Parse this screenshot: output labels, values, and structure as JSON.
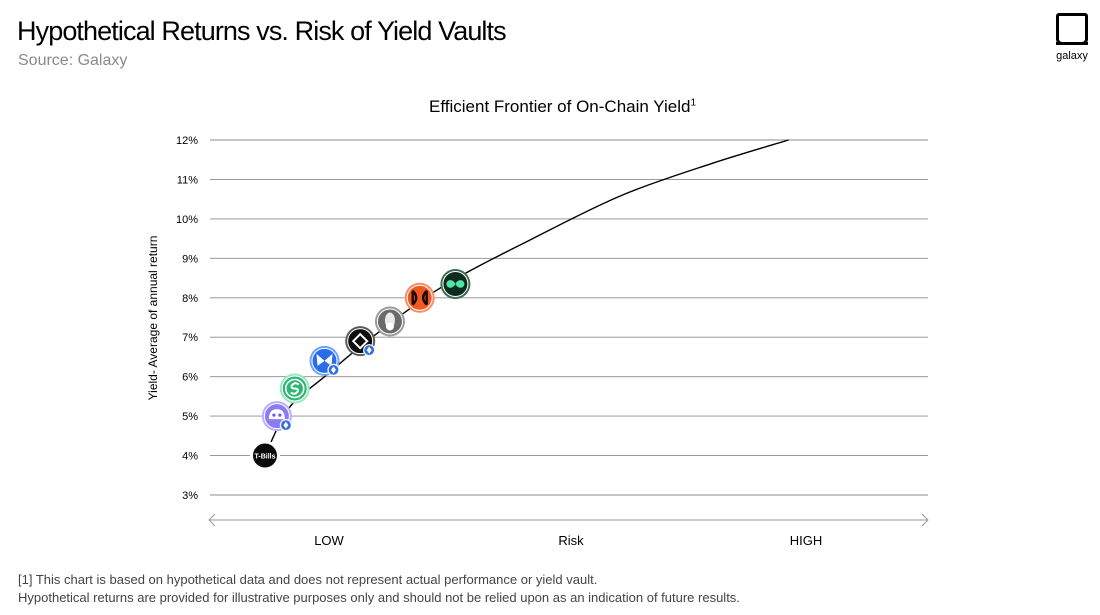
{
  "header": {
    "title": "Hypothetical Returns vs. Risk of Yield Vaults",
    "source": "Source: Galaxy",
    "logo_text": "galaxy"
  },
  "chart_data": {
    "type": "line",
    "title": "Efficient Frontier of On-Chain Yield",
    "title_footnote_marker": "1",
    "ylabel": "Yield- Average of annual return",
    "xlabel": "Risk",
    "ylim": [
      3,
      12
    ],
    "y_ticks": [
      "3%",
      "4%",
      "5%",
      "6%",
      "7%",
      "8%",
      "9%",
      "10%",
      "11%",
      "12%"
    ],
    "x_scale_labels": {
      "low": "LOW",
      "mid": "Risk",
      "high": "HIGH"
    },
    "xlim": [
      0,
      1
    ],
    "grid": true,
    "frontier_curve": [
      {
        "x": 0.0,
        "y": 4.0
      },
      {
        "x": 0.04,
        "y": 5.2
      },
      {
        "x": 0.1,
        "y": 6.0
      },
      {
        "x": 0.18,
        "y": 7.0
      },
      {
        "x": 0.3,
        "y": 8.3
      },
      {
        "x": 0.45,
        "y": 9.5
      },
      {
        "x": 0.6,
        "y": 10.6
      },
      {
        "x": 0.75,
        "y": 11.4
      },
      {
        "x": 0.88,
        "y": 12.0
      }
    ],
    "points": [
      {
        "x": 0.0,
        "y": 4.0,
        "icon": "t-bills-icon",
        "label": "T-Bills",
        "color": "#0b0b0b",
        "ring": "#ffffff",
        "badge": false
      },
      {
        "x": 0.02,
        "y": 5.0,
        "icon": "face-icon",
        "color": "#8b7cf6",
        "ring": "#b8aefc",
        "badge": true
      },
      {
        "x": 0.05,
        "y": 5.7,
        "icon": "s-coin-icon",
        "color": "#2fb673",
        "ring": "#9be7bf",
        "badge": false
      },
      {
        "x": 0.1,
        "y": 6.4,
        "icon": "butterfly-icon",
        "color": "#2a6de8",
        "ring": "#6ea2ff",
        "badge": true
      },
      {
        "x": 0.16,
        "y": 6.9,
        "icon": "diamond-icon",
        "color": "#0e0e0e",
        "ring": "#5c5c5c",
        "badge": true
      },
      {
        "x": 0.21,
        "y": 7.4,
        "icon": "rocket-icon",
        "color": "#6a6a6a",
        "ring": "#9a9a9a",
        "badge": false
      },
      {
        "x": 0.26,
        "y": 8.0,
        "icon": "gate-icon",
        "color": "#f05a22",
        "ring": "#ff8a5b",
        "badge": false
      },
      {
        "x": 0.32,
        "y": 8.35,
        "icon": "infinity-icon",
        "color": "#0f2a1e",
        "ring": "#3d6e55",
        "badge": false
      }
    ]
  },
  "footnotes": {
    "line1": "[1] This chart is based on hypothetical data and does not represent actual performance or yield vault.",
    "line2": "Hypothetical returns are provided for illustrative purposes only and should not be relied upon as an indication of future results."
  }
}
